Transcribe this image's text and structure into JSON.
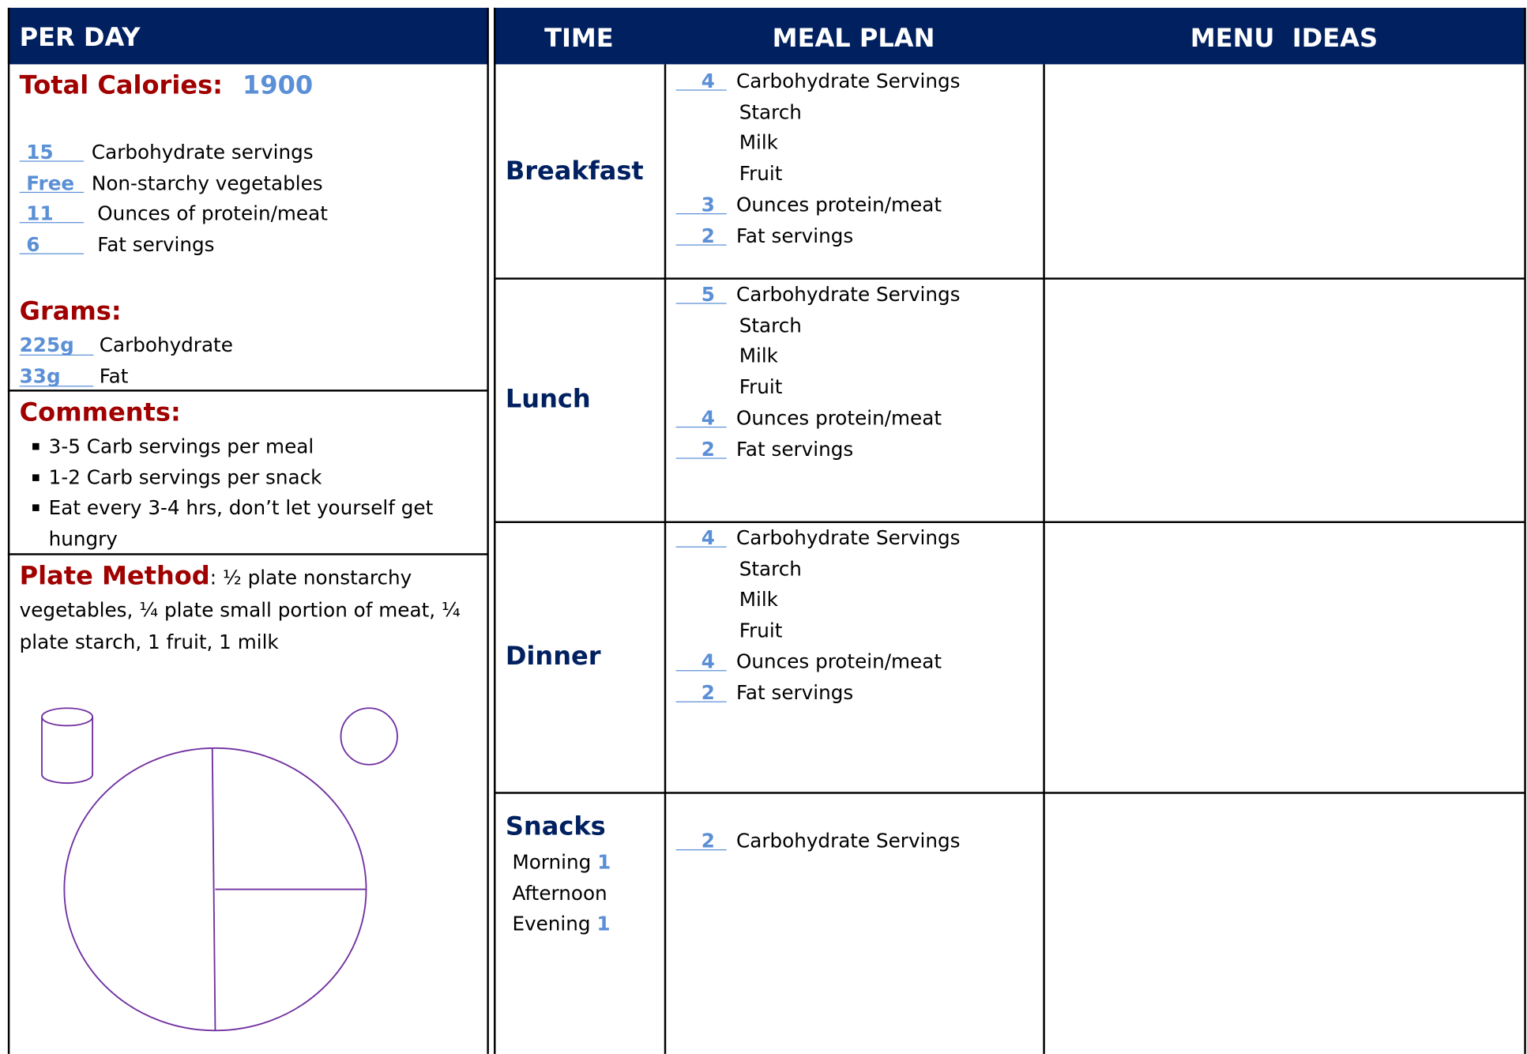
{
  "per_day": {
    "header": "PER DAY",
    "total_calories": {
      "label": "Total Calories:",
      "value": 1900
    },
    "servings": [
      {
        "value": 15,
        "label": "Carbohydrate servings"
      },
      {
        "value": "Free",
        "label": "Non-starchy vegetables"
      },
      {
        "value": 11,
        "label": "Ounces of protein/meat"
      },
      {
        "value": 6,
        "label": "Fat servings"
      }
    ],
    "grams": {
      "title": "Grams:",
      "items": [
        {
          "value": "225g",
          "label": "Carbohydrate"
        },
        {
          "value": "33g",
          "label": "Fat"
        }
      ]
    },
    "comments": {
      "title": "Comments:",
      "items": [
        "3-5 Carb servings per meal",
        "1-2 Carb servings per snack",
        "Eat every 3-4 hrs, don’t let yourself get hungry"
      ]
    },
    "plate_method": {
      "title": "Plate Method",
      "text": ":  ½ plate nonstarchy vegetables, ¼ plate small portion of meat, ¼ plate starch, 1 fruit, 1 milk"
    }
  },
  "plan": {
    "headers": [
      "TIME",
      "MEAL PLAN",
      "MENU  IDEAS"
    ],
    "meals": [
      {
        "time": "Breakfast",
        "lines": [
          {
            "value": 4,
            "label": "Carbohydrate Servings"
          },
          {
            "label": "Starch"
          },
          {
            "label": "Milk"
          },
          {
            "label": "Fruit"
          },
          {
            "value": 3,
            "label": "Ounces protein/meat"
          },
          {
            "value": 2,
            "label": "Fat servings"
          }
        ]
      },
      {
        "time": "Lunch",
        "lines": [
          {
            "value": 5,
            "label": "Carbohydrate Servings"
          },
          {
            "label": "Starch"
          },
          {
            "label": "Milk"
          },
          {
            "label": "Fruit"
          },
          {
            "value": 4,
            "label": "Ounces protein/meat"
          },
          {
            "value": 2,
            "label": "Fat servings"
          }
        ]
      },
      {
        "time": "Dinner",
        "lines": [
          {
            "value": 4,
            "label": "Carbohydrate Servings"
          },
          {
            "label": "Starch"
          },
          {
            "label": "Milk"
          },
          {
            "label": "Fruit"
          },
          {
            "value": 4,
            "label": "Ounces protein/meat"
          },
          {
            "value": 2,
            "label": "Fat servings"
          }
        ]
      }
    ],
    "snacks": {
      "time": "Snacks",
      "sub": [
        {
          "label": "Morning",
          "value": 1
        },
        {
          "label": "Afternoon"
        },
        {
          "label": "Evening",
          "value": 1
        }
      ],
      "lines": [
        {
          "value": 2,
          "label": "Carbohydrate Servings"
        }
      ]
    }
  }
}
